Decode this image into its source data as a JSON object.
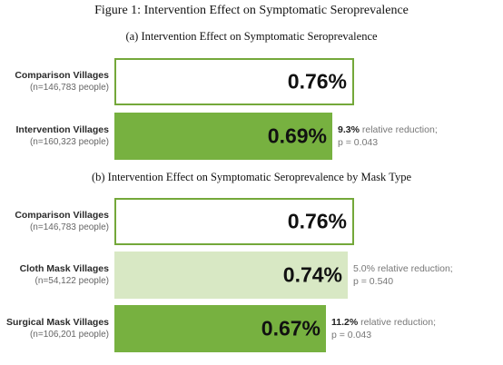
{
  "figure_title": "Figure 1: Intervention Effect on Symptomatic Seroprevalence",
  "colors": {
    "white_border": "#74a83a",
    "light_fill": "#d8e8c4",
    "dark_fill": "#77b140"
  },
  "chart_data": [
    {
      "type": "bar",
      "title": "(a) Intervention Effect on Symptomatic Seroprevalence",
      "unit": "%",
      "xlim": [
        0,
        0.8
      ],
      "bars": [
        {
          "name": "Comparison Villages",
          "n": "(n=146,783 people)",
          "value": 0.76,
          "label": "0.76%",
          "style": "outline",
          "reduction": "",
          "reduction_rest": "",
          "p": ""
        },
        {
          "name": "Intervention Villages",
          "n": "(n=160,323 people)",
          "value": 0.69,
          "label": "0.69%",
          "style": "dark",
          "reduction": "9.3%",
          "reduction_rest": " relative reduction;",
          "p": "p =  0.043"
        }
      ]
    },
    {
      "type": "bar",
      "title": "(b) Intervention Effect on Symptomatic Seroprevalence by Mask Type",
      "unit": "%",
      "xlim": [
        0,
        0.8
      ],
      "bars": [
        {
          "name": "Comparison Villages",
          "n": "(n=146,783 people)",
          "value": 0.76,
          "label": "0.76%",
          "style": "outline",
          "reduction": "",
          "reduction_rest": "",
          "p": ""
        },
        {
          "name": "Cloth Mask Villages",
          "n": "(n=54,122 people)",
          "value": 0.74,
          "label": "0.74%",
          "style": "light",
          "reduction": "",
          "reduction_rest": "5.0% relative reduction;",
          "p": "p =  0.540"
        },
        {
          "name": "Surgical Mask Villages",
          "n": "(n=106,201 people)",
          "value": 0.67,
          "label": "0.67%",
          "style": "dark",
          "reduction": "11.2%",
          "reduction_rest": " relative reduction;",
          "p": "p = 0.043"
        }
      ]
    }
  ]
}
